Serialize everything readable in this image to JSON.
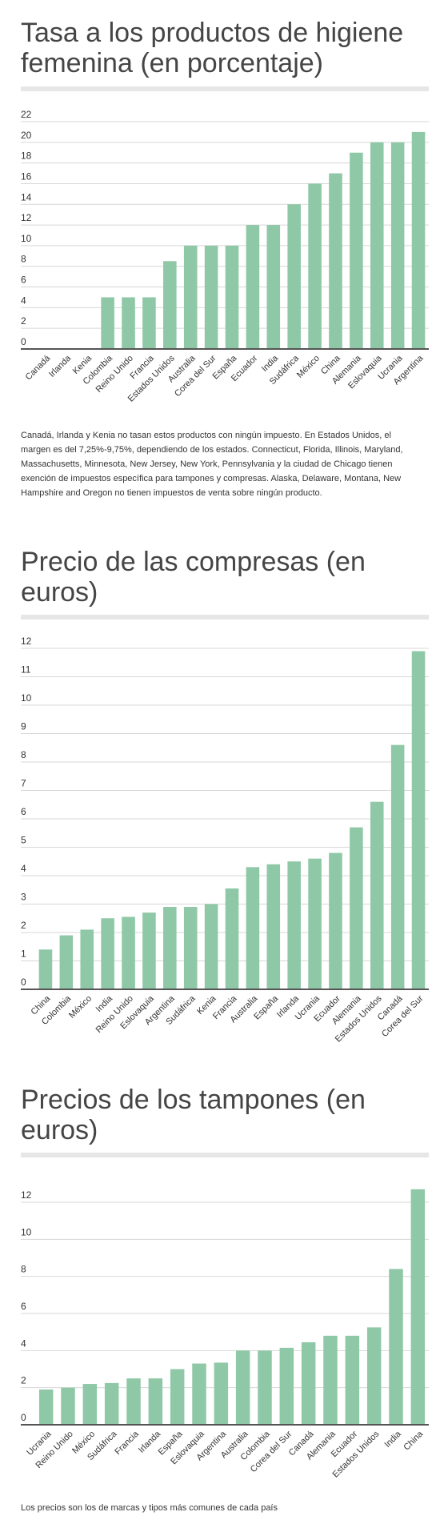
{
  "colors": {
    "bar": "#8fc8a7",
    "grid": "#d7d7d7",
    "axis": "#555555"
  },
  "chart_data": [
    {
      "type": "bar",
      "title": "Tasa a los productos de higiene femenina (en porcentaje)",
      "xlabel": "",
      "ylabel": "",
      "ylim": [
        0,
        22
      ],
      "yticks": [
        0,
        2,
        4,
        6,
        8,
        10,
        12,
        14,
        16,
        18,
        20,
        22
      ],
      "grid": true,
      "categories": [
        "Canadá",
        "Irlanda",
        "Kenia",
        "Colombia",
        "Reino Unido",
        "Francia",
        "Estados Unidos",
        "Australia",
        "Corea del Sur",
        "España",
        "Ecuador",
        "India",
        "Sudáfrica",
        "México",
        "China",
        "Alemania",
        "Eslovaquia",
        "Ucrania",
        "Argentina"
      ],
      "values": [
        0,
        0,
        0,
        5,
        5,
        5,
        8.5,
        10,
        10,
        10,
        12,
        12,
        14,
        16,
        17,
        19,
        20,
        20,
        21
      ]
    },
    {
      "type": "bar",
      "title": "Precio de las compresas (en euros)",
      "xlabel": "",
      "ylabel": "",
      "ylim": [
        0,
        12
      ],
      "yticks": [
        0,
        1,
        2,
        3,
        4,
        5,
        6,
        7,
        8,
        9,
        10,
        11,
        12
      ],
      "grid": true,
      "categories": [
        "China",
        "Colombia",
        "México",
        "India",
        "Reino Unido",
        "Eslovaquia",
        "Argentina",
        "Sudáfrica",
        "Kenia",
        "Francia",
        "Australia",
        "España",
        "Irlanda",
        "Ucrania",
        "Ecuador",
        "Alemania",
        "Estados Unidos",
        "Canadá",
        "Corea del Sur"
      ],
      "values": [
        1.4,
        1.9,
        2.1,
        2.5,
        2.55,
        2.7,
        2.9,
        2.9,
        3.0,
        3.55,
        4.3,
        4.4,
        4.5,
        4.6,
        4.8,
        5.7,
        6.6,
        8.6,
        11.9
      ]
    },
    {
      "type": "bar",
      "title": "Precios de los tampones (en euros)",
      "xlabel": "",
      "ylabel": "",
      "ylim": [
        0,
        12
      ],
      "yticks": [
        0,
        2,
        4,
        6,
        8,
        10,
        12
      ],
      "grid": true,
      "categories": [
        "Ucrania",
        "Reino Unido",
        "México",
        "Sudáfrica",
        "Francia",
        "Irlanda",
        "España",
        "Eslovaquia",
        "Argentina",
        "Australia",
        "Colombia",
        "Corea del Sur",
        "Canadá",
        "Alemania",
        "Ecuador",
        "Estados Unidos",
        "India",
        "China"
      ],
      "values": [
        1.9,
        2.0,
        2.2,
        2.25,
        2.5,
        2.5,
        3.0,
        3.3,
        3.35,
        4.0,
        4.0,
        4.15,
        4.45,
        4.8,
        4.8,
        5.25,
        8.4,
        12.7
      ]
    }
  ],
  "notes": {
    "tax_note": "Canadá, Irlanda y Kenia no tasan estos productos con ningún impuesto. En Estados Unidos, el margen es del 7,25%-9,75%, dependiendo de los estados. Connecticut, Florida, Illinois, Maryland, Massachusetts, Minnesota, New Jersey, New York, Pennsylvania y la ciudad de Chicago tienen exención de impuestos específica para tampones y compresas. Alaska, Delaware, Montana, New Hampshire and Oregon no tienen impuestos de venta sobre ningún producto.",
    "footer_note": "Los precios son los de marcas y tipos más comunes de cada país"
  }
}
